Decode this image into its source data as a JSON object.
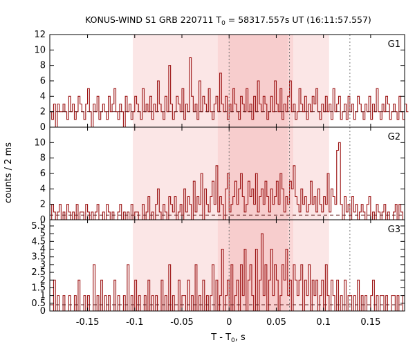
{
  "colors": {
    "step": "#9b1111",
    "wide_band": "#fbe6e6",
    "mid_band": "#fad7d7",
    "core_band": "#f7cdcd",
    "background": "#5e1a1a"
  },
  "chart_data": {
    "type": "step-histogram",
    "title": {
      "prefix": "KONUS-WIND S1 GRB 220711 T",
      "sub": "0",
      "suffix": " = 58317.557s UT (16:11:57.557)"
    },
    "xlabel": {
      "prefix": "T - T",
      "sub": "0",
      "suffix": ", s"
    },
    "ylabel": "counts / 2 ms",
    "xlim": [
      -0.19,
      0.186
    ],
    "bin_width": 0.002,
    "x_ticks": [
      {
        "value": -0.15,
        "label": "-0.15"
      },
      {
        "value": -0.1,
        "label": "-0.1"
      },
      {
        "value": -0.05,
        "label": "-0.05"
      },
      {
        "value": 0,
        "label": "0"
      },
      {
        "value": 0.05,
        "label": "0.05"
      },
      {
        "value": 0.1,
        "label": "0.1"
      },
      {
        "value": 0.15,
        "label": "0.15"
      }
    ],
    "shaded_intervals": [
      {
        "range": [
          -0.102,
          0.106
        ],
        "color_key": "wide_band"
      },
      {
        "range": [
          -0.012,
          0.068
        ],
        "color_key": "mid_band"
      },
      {
        "range": [
          0,
          0.062
        ],
        "color_key": "core_band"
      }
    ],
    "vertical_markers": [
      0,
      0.064,
      0.128
    ],
    "panels": [
      {
        "label": "G1",
        "ylim": [
          0,
          12
        ],
        "yticks": [
          {
            "value": 0,
            "label": "0"
          },
          {
            "value": 2,
            "label": "2"
          },
          {
            "value": 4,
            "label": "4"
          },
          {
            "value": 6,
            "label": "6"
          },
          {
            "value": 8,
            "label": "8"
          },
          {
            "value": 10,
            "label": "10"
          },
          {
            "value": 12,
            "label": "12"
          }
        ],
        "background_level": 2.0,
        "values": [
          2,
          1,
          3,
          0,
          3,
          2,
          2,
          3,
          2,
          1,
          4,
          2,
          3,
          1,
          2,
          4,
          3,
          2,
          1,
          3,
          5,
          2,
          0,
          3,
          2,
          4,
          1,
          2,
          3,
          2,
          1,
          4,
          2,
          3,
          5,
          2,
          1,
          3,
          2,
          0,
          4,
          2,
          3,
          1,
          2,
          4,
          3,
          2,
          1,
          5,
          2,
          3,
          2,
          4,
          1,
          3,
          2,
          6,
          3,
          2,
          1,
          4,
          2,
          8,
          3,
          1,
          2,
          4,
          3,
          2,
          5,
          1,
          3,
          2,
          9,
          4,
          2,
          3,
          1,
          6,
          2,
          4,
          3,
          2,
          5,
          2,
          1,
          3,
          4,
          2,
          7,
          3,
          2,
          4,
          1,
          3,
          2,
          5,
          3,
          2,
          1,
          4,
          3,
          2,
          5,
          2,
          3,
          1,
          4,
          2,
          6,
          3,
          2,
          4,
          3,
          1,
          2,
          4,
          2,
          6,
          3,
          2,
          5,
          1,
          3,
          2,
          4,
          6,
          2,
          3,
          1,
          2,
          5,
          3,
          2,
          4,
          1,
          3,
          2,
          4,
          3,
          5,
          2,
          1,
          3,
          2,
          4,
          2,
          3,
          1,
          5,
          2,
          3,
          4,
          1,
          2,
          3,
          1,
          4,
          2,
          3,
          1,
          2,
          4,
          3,
          2,
          1,
          3,
          2,
          4,
          1,
          3,
          2,
          5,
          2,
          1,
          3,
          2,
          4,
          3,
          1,
          2,
          3,
          2,
          1,
          4,
          2,
          1,
          3,
          2
        ]
      },
      {
        "label": "G2",
        "ylim": [
          0,
          12
        ],
        "yticks": [
          {
            "value": 0,
            "label": "0"
          },
          {
            "value": 2,
            "label": "2"
          },
          {
            "value": 4,
            "label": "4"
          },
          {
            "value": 6,
            "label": "6"
          },
          {
            "value": 8,
            "label": "8"
          },
          {
            "value": 10,
            "label": "10"
          }
        ],
        "background_level": 0.6,
        "values": [
          0,
          2,
          1,
          0,
          1,
          2,
          0,
          1,
          0,
          2,
          1,
          0,
          1,
          0,
          2,
          0,
          1,
          1,
          0,
          2,
          1,
          0,
          1,
          0,
          1,
          2,
          0,
          0,
          1,
          0,
          2,
          1,
          0,
          1,
          0,
          0,
          1,
          2,
          0,
          1,
          0,
          1,
          0,
          2,
          0,
          1,
          1,
          0,
          0,
          2,
          0,
          1,
          3,
          0,
          1,
          0,
          2,
          4,
          1,
          0,
          2,
          1,
          0,
          3,
          2,
          1,
          3,
          0,
          1,
          2,
          0,
          4,
          1,
          3,
          2,
          0,
          5,
          1,
          3,
          2,
          6,
          0,
          4,
          2,
          1,
          3,
          5,
          2,
          7,
          1,
          3,
          2,
          0,
          4,
          6,
          1,
          2,
          3,
          5,
          2,
          4,
          6,
          3,
          1,
          2,
          5,
          3,
          4,
          2,
          6,
          1,
          3,
          4,
          2,
          5,
          3,
          1,
          4,
          2,
          3,
          5,
          2,
          6,
          4,
          1,
          3,
          2,
          5,
          4,
          7,
          3,
          2,
          1,
          4,
          2,
          3,
          1,
          2,
          5,
          2,
          3,
          1,
          4,
          2,
          1,
          3,
          2,
          6,
          1,
          4,
          3,
          2,
          9,
          10,
          2,
          0,
          3,
          1,
          2,
          0,
          3,
          1,
          2,
          0,
          1,
          2,
          1,
          0,
          2,
          3,
          0,
          1,
          0,
          2,
          1,
          0,
          1,
          2,
          0,
          1,
          0,
          0,
          1,
          2,
          0,
          2,
          1,
          0
        ]
      },
      {
        "label": "G3",
        "ylim": [
          0,
          5.9
        ],
        "yticks": [
          {
            "value": 0,
            "label": "0"
          },
          {
            "value": 0.5,
            "label": "0.5"
          },
          {
            "value": 1,
            "label": "1"
          },
          {
            "value": 1.5,
            "label": "1.5"
          },
          {
            "value": 2,
            "label": "2"
          },
          {
            "value": 2.5,
            "label": "2.5"
          },
          {
            "value": 3,
            "label": "3"
          },
          {
            "value": 3.5,
            "label": "3.5"
          },
          {
            "value": 4,
            "label": "4"
          },
          {
            "value": 4.5,
            "label": "4.5"
          },
          {
            "value": 5,
            "label": "5"
          },
          {
            "value": 5.5,
            "label": "5.5"
          }
        ],
        "background_level": 0.4,
        "values": [
          0,
          0,
          2,
          0,
          1,
          0,
          0,
          1,
          0,
          0,
          1,
          0,
          0,
          1,
          0,
          2,
          0,
          0,
          1,
          0,
          1,
          0,
          0,
          3,
          0,
          1,
          0,
          2,
          0,
          1,
          0,
          1,
          0,
          0,
          2,
          0,
          1,
          0,
          0,
          1,
          0,
          3,
          0,
          1,
          0,
          2,
          0,
          1,
          0,
          0,
          1,
          0,
          2,
          0,
          1,
          0,
          1,
          0,
          0,
          2,
          0,
          1,
          0,
          3,
          0,
          1,
          0,
          0,
          2,
          0,
          1,
          1,
          0,
          2,
          0,
          1,
          0,
          3,
          0,
          1,
          0,
          2,
          0,
          1,
          0,
          1,
          3,
          0,
          2,
          0,
          1,
          4,
          0,
          1,
          2,
          0,
          3,
          0,
          1,
          2,
          0,
          3,
          1,
          4,
          0,
          2,
          3,
          1,
          0,
          4,
          0,
          2,
          5,
          1,
          3,
          0,
          2,
          4,
          1,
          3,
          2,
          0,
          1,
          3,
          2,
          4,
          1,
          2,
          0,
          3,
          2,
          1,
          2,
          3,
          0,
          2,
          1,
          3,
          0,
          2,
          1,
          2,
          0,
          1,
          2,
          0,
          3,
          1,
          0,
          2,
          1,
          0,
          2,
          0,
          1,
          0,
          2,
          0,
          1,
          1,
          0,
          1,
          0,
          2,
          0,
          1,
          0,
          1,
          0,
          0,
          1,
          2,
          0,
          1,
          0,
          1,
          1,
          0,
          1,
          0,
          0,
          1,
          1,
          0,
          1,
          0,
          0,
          1
        ]
      }
    ]
  }
}
